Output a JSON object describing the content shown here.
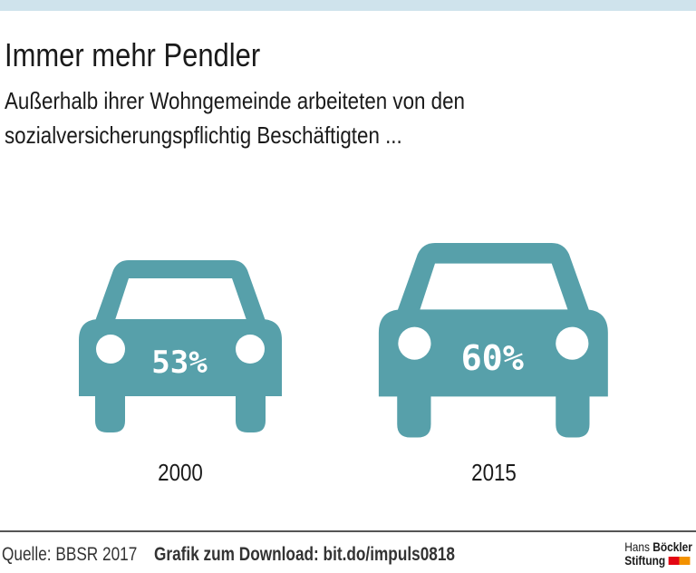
{
  "title": "Immer mehr Pendler",
  "subtitle": [
    "Außerhalb ihrer Wohngemeinde arbeiteten von den",
    "sozialversicherungspflichtig Beschäftigten ..."
  ],
  "colors": {
    "car": "#57a0aa",
    "band": "#cfe3ec",
    "logo_red": "#e30613",
    "logo_orange": "#f39200"
  },
  "chart_data": {
    "type": "pictogram",
    "title": "Immer mehr Pendler",
    "categories": [
      "2000",
      "2015"
    ],
    "values": [
      53,
      60
    ],
    "value_labels": [
      "53%",
      "60%"
    ],
    "unit": "%"
  },
  "footer": {
    "source": "Quelle: BBSR 2017",
    "download": "Grafik zum Download: bit.do/impuls0818"
  },
  "logo": {
    "line1_light": "Hans",
    "line1_bold": "Böckler",
    "line2": "Stiftung"
  }
}
